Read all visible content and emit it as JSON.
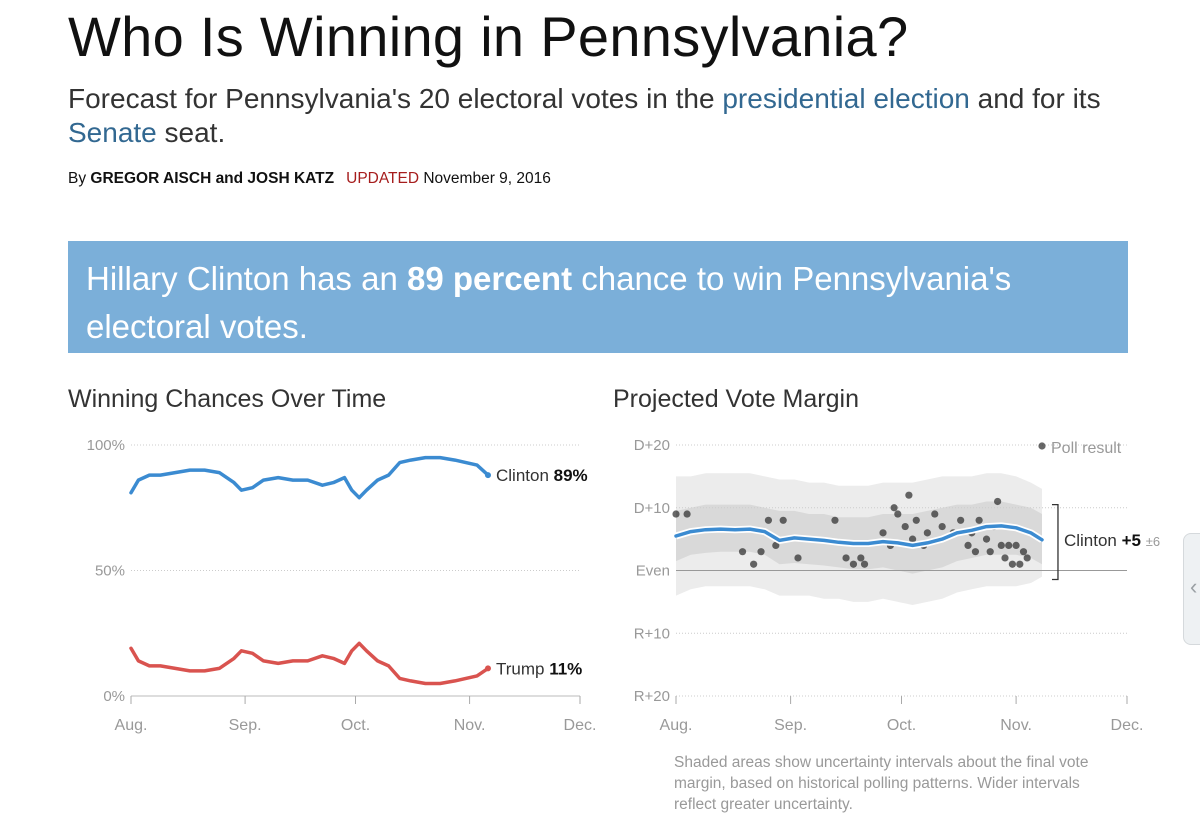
{
  "header": {
    "headline": "Who Is Winning in Pennsylvania?",
    "dek_part1": "Forecast for Pennsylvania's 20 electoral votes in the ",
    "dek_link1": "presidential election",
    "dek_part2": " and for its ",
    "dek_link2": "Senate",
    "dek_part3": " seat.",
    "byline_prefix": "By ",
    "byline_authors": "GREGOR AISCH and JOSH KATZ",
    "updated_label": "UPDATED",
    "updated_date": "November 9, 2016"
  },
  "summary": {
    "part1": "Hillary Clinton has an ",
    "bold": "89 percent",
    "part2": " chance to win Pennsylvania's electoral votes."
  },
  "edge_tab": {
    "glyph": "‹"
  },
  "caption": "Shaded areas show uncertainty intervals about the final vote margin, based on historical polling patterns. Wider intervals reflect greater uncertainty.",
  "chart_data": [
    {
      "type": "line",
      "title": "Winning Chances Over Time",
      "x_ticks": [
        "Aug.",
        "Sep.",
        "Oct.",
        "Nov.",
        "Dec."
      ],
      "x_tick_days": [
        0,
        31,
        61,
        92,
        122
      ],
      "xlim_days": [
        0,
        122
      ],
      "y_ticks": [
        "100%",
        "50%",
        "0%"
      ],
      "y_tick_values": [
        100,
        50,
        0
      ],
      "ylim": [
        0,
        100
      ],
      "grid": true,
      "series": [
        {
          "name": "Clinton",
          "end_label": "89%",
          "color": "#3b8bd1",
          "x": [
            0,
            2,
            5,
            8,
            12,
            16,
            20,
            24,
            28,
            30,
            33,
            36,
            40,
            44,
            48,
            52,
            55,
            58,
            60,
            62,
            64,
            67,
            70,
            73,
            76,
            80,
            84,
            88,
            91,
            94,
            97
          ],
          "y": [
            81,
            86,
            88,
            88,
            89,
            90,
            90,
            89,
            85,
            82,
            83,
            86,
            87,
            86,
            86,
            84,
            85,
            87,
            82,
            79,
            82,
            86,
            88,
            93,
            94,
            95,
            95,
            94,
            93,
            92,
            88
          ]
        },
        {
          "name": "Trump",
          "end_label": "11%",
          "color": "#d9534f",
          "x": [
            0,
            2,
            5,
            8,
            12,
            16,
            20,
            24,
            28,
            30,
            33,
            36,
            40,
            44,
            48,
            52,
            55,
            58,
            60,
            62,
            64,
            67,
            70,
            73,
            76,
            80,
            84,
            88,
            91,
            94,
            97
          ],
          "y": [
            19,
            14,
            12,
            12,
            11,
            10,
            10,
            11,
            15,
            18,
            17,
            14,
            13,
            14,
            14,
            16,
            15,
            13,
            18,
            21,
            18,
            14,
            12,
            7,
            6,
            5,
            5,
            6,
            7,
            8,
            11
          ]
        }
      ]
    },
    {
      "type": "scatter",
      "title": "Projected Vote Margin",
      "x_ticks": [
        "Aug.",
        "Sep.",
        "Oct.",
        "Nov.",
        "Dec."
      ],
      "x_tick_days": [
        0,
        31,
        61,
        92,
        122
      ],
      "xlim_days": [
        0,
        122
      ],
      "y_ticks": [
        "D+20",
        "D+10",
        "Even",
        "R+10",
        "R+20"
      ],
      "y_tick_values": [
        20,
        10,
        0,
        -10,
        -20
      ],
      "ylim": [
        -20,
        20
      ],
      "grid": true,
      "legend": {
        "label": "Poll result",
        "position": "top-right"
      },
      "projection": {
        "name": "Clinton",
        "value_label": "+5",
        "uncertainty_label": "±6",
        "color": "#3b8bd1",
        "x": [
          0,
          4,
          8,
          12,
          16,
          20,
          24,
          28,
          32,
          36,
          40,
          44,
          48,
          52,
          56,
          60,
          64,
          68,
          72,
          76,
          80,
          84,
          88,
          92,
          96,
          99
        ],
        "y": [
          5.5,
          6.2,
          6.5,
          6.6,
          6.5,
          6.6,
          6.2,
          4.8,
          5.2,
          5.0,
          4.8,
          4.5,
          4.3,
          4.3,
          4.6,
          4.4,
          4.0,
          4.4,
          5.0,
          6.0,
          6.4,
          7.0,
          7.1,
          6.8,
          6.0,
          4.9
        ],
        "inner_band_upper": [
          9.5,
          10,
          10.5,
          10.5,
          10.5,
          10.5,
          10,
          9.5,
          9.5,
          9,
          9,
          8.5,
          8.5,
          8.5,
          9,
          9,
          9,
          9.5,
          10,
          10.5,
          10.5,
          11,
          11,
          10.5,
          10,
          9
        ],
        "inner_band_lower": [
          1.5,
          2.5,
          2.8,
          3,
          3,
          3,
          2.5,
          1,
          1.2,
          1,
          0.8,
          0.5,
          0.2,
          0.2,
          0.5,
          0,
          -0.5,
          0,
          0.5,
          1.5,
          2,
          2.5,
          2.5,
          2.5,
          2,
          1
        ],
        "outer_band_upper": [
          15,
          15,
          15.5,
          15.5,
          15.5,
          15.5,
          15,
          14.5,
          14.5,
          14,
          14,
          13.5,
          13.5,
          13.5,
          14,
          14,
          14,
          14.5,
          15,
          15,
          15,
          15.5,
          15.5,
          15,
          14,
          13
        ],
        "outer_band_lower": [
          -4,
          -3,
          -2.5,
          -2.5,
          -2.5,
          -2.5,
          -3,
          -4,
          -4,
          -4,
          -4.5,
          -4.5,
          -5,
          -5,
          -4.5,
          -5,
          -5.5,
          -5,
          -4.5,
          -3.5,
          -3,
          -2.5,
          -2.5,
          -2.5,
          -2,
          -1
        ]
      },
      "points": [
        {
          "x": 0,
          "y": 9
        },
        {
          "x": 3,
          "y": 9
        },
        {
          "x": 18,
          "y": 3
        },
        {
          "x": 21,
          "y": 1
        },
        {
          "x": 23,
          "y": 3
        },
        {
          "x": 25,
          "y": 8
        },
        {
          "x": 27,
          "y": 4
        },
        {
          "x": 29,
          "y": 8
        },
        {
          "x": 33,
          "y": 2
        },
        {
          "x": 43,
          "y": 8
        },
        {
          "x": 46,
          "y": 2
        },
        {
          "x": 48,
          "y": 1
        },
        {
          "x": 50,
          "y": 2
        },
        {
          "x": 51,
          "y": 1
        },
        {
          "x": 56,
          "y": 6
        },
        {
          "x": 58,
          "y": 4
        },
        {
          "x": 59,
          "y": 10
        },
        {
          "x": 60,
          "y": 9
        },
        {
          "x": 62,
          "y": 7
        },
        {
          "x": 63,
          "y": 12
        },
        {
          "x": 64,
          "y": 5
        },
        {
          "x": 65,
          "y": 8
        },
        {
          "x": 67,
          "y": 4
        },
        {
          "x": 68,
          "y": 6
        },
        {
          "x": 70,
          "y": 9
        },
        {
          "x": 72,
          "y": 7
        },
        {
          "x": 75,
          "y": 6
        },
        {
          "x": 77,
          "y": 8
        },
        {
          "x": 79,
          "y": 4
        },
        {
          "x": 80,
          "y": 6
        },
        {
          "x": 81,
          "y": 3
        },
        {
          "x": 82,
          "y": 8
        },
        {
          "x": 84,
          "y": 5
        },
        {
          "x": 85,
          "y": 3
        },
        {
          "x": 86,
          "y": 7
        },
        {
          "x": 87,
          "y": 11
        },
        {
          "x": 88,
          "y": 4
        },
        {
          "x": 89,
          "y": 2
        },
        {
          "x": 90,
          "y": 4
        },
        {
          "x": 91,
          "y": 1
        },
        {
          "x": 92,
          "y": 4
        },
        {
          "x": 93,
          "y": 1
        },
        {
          "x": 94,
          "y": 3
        },
        {
          "x": 95,
          "y": 2
        }
      ]
    }
  ]
}
